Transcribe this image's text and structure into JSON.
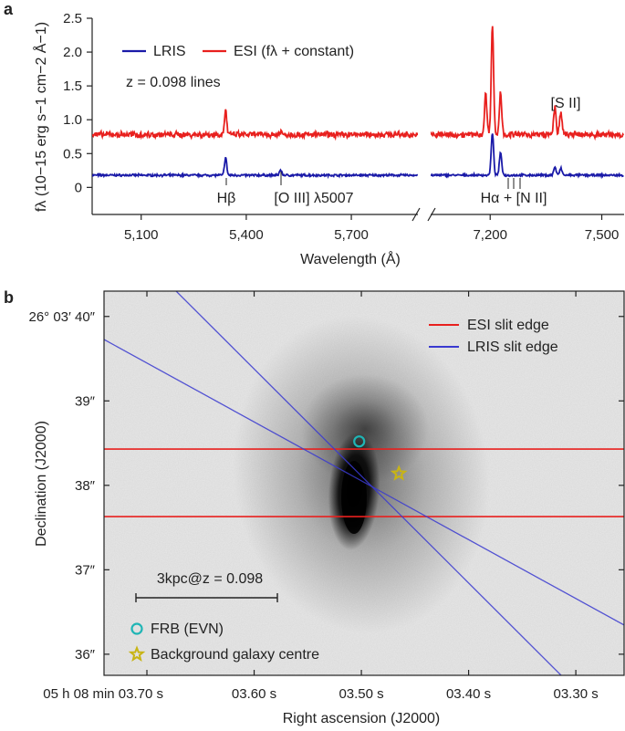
{
  "chart_data": [
    {
      "panel": "a",
      "type": "line",
      "ylabel": "fλ (10−15 erg s−1 cm−2 Å−1)",
      "xlabel": "Wavelength (Å)",
      "ylim": [
        -0.4,
        2.5
      ],
      "yticks": [
        "0",
        "0.5",
        "1.0",
        "1.5",
        "2.0",
        "2.5"
      ],
      "ytick_values": [
        0,
        0.5,
        1.0,
        1.5,
        2.0,
        2.5
      ],
      "segments": [
        {
          "xlim": [
            4960,
            5890
          ],
          "xticks": [
            "5,100",
            "5,400",
            "5,700"
          ],
          "xtick_values": [
            5100,
            5400,
            5700
          ]
        },
        {
          "xlim": [
            7040,
            7560
          ],
          "xticks": [
            "7,200",
            "7,500"
          ],
          "xtick_values": [
            7200,
            7500
          ]
        }
      ],
      "legend": [
        "LRIS",
        "ESI (fλ + constant)"
      ],
      "annotation": "z = 0.098 lines",
      "line_labels": [
        "Hβ",
        "[O III] λ5007",
        "Hα + [N II]",
        "[S II]"
      ],
      "series": [
        {
          "name": "LRIS",
          "color": "#1a1aa8",
          "baseline": 0.18,
          "peaks": [
            [
              5341,
              0.26
            ],
            [
              5498,
              0.08
            ],
            [
              7206,
              0.62
            ],
            [
              7228,
              0.33
            ],
            [
              7374,
              0.12
            ],
            [
              7390,
              0.1
            ]
          ]
        },
        {
          "name": "ESI (fλ + constant)",
          "color": "#e8201e",
          "baseline": 0.78,
          "peaks": [
            [
              5341,
              0.36
            ],
            [
              5498,
              0.05
            ],
            [
              7188,
              0.6
            ],
            [
              7206,
              1.62
            ],
            [
              7228,
              0.62
            ],
            [
              7374,
              0.42
            ],
            [
              7390,
              0.32
            ]
          ]
        }
      ]
    },
    {
      "panel": "b",
      "type": "scatter",
      "xlabel": "Right ascension (J2000)",
      "ylabel": "Declination (J2000)",
      "xticks": [
        "05 h 08 min 03.70 s",
        "03.60 s",
        "03.50 s",
        "03.40 s",
        "03.30 s"
      ],
      "xtick_values": [
        3.7,
        3.6,
        3.5,
        3.4,
        3.3
      ],
      "yticks": [
        "26° 03′ 40″",
        "39″",
        "38″",
        "37″",
        "36″"
      ],
      "ytick_values": [
        40,
        39,
        38,
        37,
        36
      ],
      "xlim": [
        3.74,
        3.255
      ],
      "ylim": [
        35.75,
        40.3
      ],
      "legend_lines": [
        "ESI slit edge",
        "LRIS slit edge"
      ],
      "legend_markers": [
        "FRB (EVN)",
        "Background galaxy centre"
      ],
      "scale_bar_label": "3kpc@z = 0.098",
      "frb": {
        "ra": 3.502,
        "dec": 38.52
      },
      "background_centre": {
        "ra": 3.465,
        "dec": 38.14
      },
      "esi_edges_dec": [
        38.43,
        37.63
      ],
      "colors": {
        "esi": "#e8201e",
        "lris": "#3a3ad0",
        "frb": "#1fb5b5",
        "centre": "#c8b414"
      }
    }
  ]
}
